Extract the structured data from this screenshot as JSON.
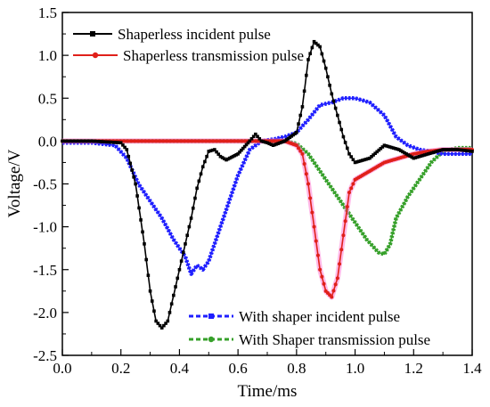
{
  "chart_data": {
    "type": "line",
    "xlabel": "Time/ms",
    "ylabel": "Voltage/V",
    "xlim": [
      0.0,
      1.4
    ],
    "ylim": [
      -2.5,
      1.5
    ],
    "xticks": [
      "0.0",
      "0.2",
      "0.4",
      "0.6",
      "0.8",
      "1.0",
      "1.2",
      "1.4"
    ],
    "yticks": [
      "1.5",
      "1.0",
      "0.5",
      "0.0",
      "-0.5",
      "-1.0",
      "-1.5",
      "-2.0",
      "-2.5"
    ],
    "grid": false,
    "colors": {
      "black": "#000000",
      "red": "#e0201a",
      "blue": "#1f1fff",
      "green": "#36a02a",
      "pink": "#ff7fd6"
    },
    "series": [
      {
        "name": "Shaperless incident pulse",
        "color": "#000000",
        "marker": "square",
        "x": [
          0.0,
          0.1,
          0.2,
          0.22,
          0.25,
          0.28,
          0.3,
          0.32,
          0.34,
          0.36,
          0.38,
          0.4,
          0.42,
          0.44,
          0.46,
          0.48,
          0.5,
          0.52,
          0.54,
          0.56,
          0.6,
          0.64,
          0.66,
          0.68,
          0.7,
          0.72,
          0.76,
          0.8,
          0.82,
          0.84,
          0.86,
          0.88,
          0.9,
          0.92,
          0.94,
          0.96,
          0.98,
          1.0,
          1.05,
          1.1,
          1.15,
          1.2,
          1.25,
          1.3,
          1.35,
          1.4
        ],
        "y": [
          0.0,
          0.0,
          -0.02,
          -0.1,
          -0.5,
          -1.2,
          -1.75,
          -2.1,
          -2.18,
          -2.1,
          -1.8,
          -1.5,
          -1.2,
          -0.9,
          -0.55,
          -0.3,
          -0.12,
          -0.1,
          -0.18,
          -0.22,
          -0.15,
          0.0,
          0.08,
          0.0,
          -0.02,
          -0.05,
          0.0,
          0.1,
          0.4,
          0.95,
          1.16,
          1.1,
          0.85,
          0.55,
          0.3,
          0.05,
          -0.15,
          -0.25,
          -0.2,
          -0.05,
          -0.1,
          -0.2,
          -0.15,
          -0.1,
          -0.1,
          -0.12
        ]
      },
      {
        "name": "Shaperless transmission pulse",
        "color": "#e0201a",
        "marker": "circle",
        "x": [
          0.0,
          0.2,
          0.4,
          0.6,
          0.76,
          0.8,
          0.82,
          0.84,
          0.86,
          0.88,
          0.9,
          0.92,
          0.94,
          0.96,
          0.98,
          1.0,
          1.05,
          1.1,
          1.15,
          1.2,
          1.25,
          1.3,
          1.35,
          1.4
        ],
        "y": [
          0.0,
          0.0,
          0.0,
          0.0,
          0.0,
          -0.05,
          -0.15,
          -0.5,
          -1.0,
          -1.5,
          -1.75,
          -1.82,
          -1.6,
          -1.1,
          -0.6,
          -0.45,
          -0.35,
          -0.25,
          -0.2,
          -0.15,
          -0.12,
          -0.1,
          -0.1,
          -0.1
        ]
      },
      {
        "name": "With shaper incident pulse",
        "color": "#1f1fff",
        "marker": "square",
        "x": [
          0.0,
          0.1,
          0.18,
          0.22,
          0.26,
          0.3,
          0.34,
          0.38,
          0.4,
          0.42,
          0.44,
          0.46,
          0.48,
          0.5,
          0.52,
          0.56,
          0.6,
          0.64,
          0.68,
          0.72,
          0.76,
          0.8,
          0.84,
          0.88,
          0.92,
          0.96,
          1.0,
          1.05,
          1.1,
          1.14,
          1.18,
          1.22,
          1.26,
          1.3,
          1.35,
          1.4
        ],
        "y": [
          -0.02,
          -0.02,
          -0.05,
          -0.2,
          -0.5,
          -0.7,
          -0.9,
          -1.15,
          -1.25,
          -1.35,
          -1.55,
          -1.45,
          -1.5,
          -1.4,
          -1.2,
          -0.8,
          -0.4,
          -0.1,
          0.0,
          0.02,
          0.05,
          0.1,
          0.25,
          0.42,
          0.45,
          0.5,
          0.5,
          0.45,
          0.3,
          0.05,
          -0.05,
          -0.1,
          -0.12,
          -0.15,
          -0.15,
          -0.15
        ]
      },
      {
        "name": "With Shaper transmission pulse",
        "color": "#36a02a",
        "marker": "circle",
        "x": [
          0.0,
          0.2,
          0.4,
          0.6,
          0.7,
          0.76,
          0.8,
          0.84,
          0.88,
          0.92,
          0.96,
          1.0,
          1.04,
          1.08,
          1.1,
          1.12,
          1.14,
          1.18,
          1.22,
          1.26,
          1.3,
          1.35,
          1.4
        ],
        "y": [
          0.0,
          0.0,
          0.0,
          0.0,
          0.0,
          0.0,
          -0.03,
          -0.15,
          -0.35,
          -0.55,
          -0.75,
          -0.95,
          -1.15,
          -1.3,
          -1.32,
          -1.2,
          -0.9,
          -0.65,
          -0.45,
          -0.25,
          -0.12,
          -0.08,
          -0.08
        ]
      }
    ],
    "legend": [
      {
        "label": "Shaperless incident pulse",
        "series": 0
      },
      {
        "label": "Shaperless transmission pulse",
        "series": 1
      },
      {
        "label": "With shaper incident pulse",
        "series": 2
      },
      {
        "label": "With Shaper transmission pulse",
        "series": 3
      }
    ]
  }
}
